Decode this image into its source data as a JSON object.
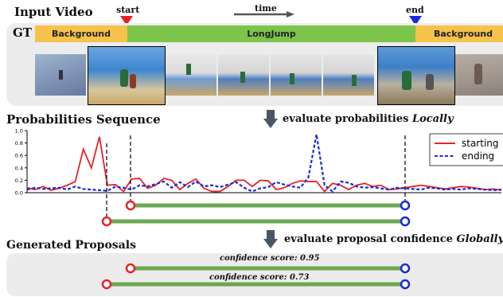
{
  "input_video": {
    "title": "Input Video",
    "start_label": "start",
    "end_label": "end",
    "time_label": "time",
    "gt_label": "GT",
    "segments": [
      "Background",
      "LongJump",
      "Background"
    ],
    "colors": {
      "background_seg": "#f5c24a",
      "action_seg": "#7cc44a",
      "start_marker": "#e8202a",
      "end_marker": "#1a2ad8"
    }
  },
  "probabilities": {
    "title": "Probabilities Sequence",
    "note_prefix": "evaluate probabilities ",
    "note_emphasis": "Locally"
  },
  "proposals": {
    "title": "Generated Proposals",
    "note_prefix": "evaluate proposal confidence ",
    "note_emphasis": "Globally",
    "items": [
      {
        "confidence_label": "confidence score: 0.95"
      },
      {
        "confidence_label": "confidence score: 0.73"
      }
    ]
  },
  "chart_data": {
    "type": "line",
    "x": [
      0,
      1,
      2,
      3,
      4,
      5,
      6,
      7,
      8,
      9,
      10,
      11,
      12,
      13,
      14,
      15,
      16,
      17,
      18,
      19,
      20,
      21,
      22,
      23,
      24,
      25,
      26,
      27,
      28,
      29,
      30,
      31,
      32,
      33,
      34,
      35,
      36,
      37,
      38,
      39,
      40,
      41,
      42,
      43,
      44,
      45,
      46,
      47,
      48,
      49,
      50,
      51,
      52,
      53,
      54,
      55,
      56,
      57,
      58,
      59
    ],
    "yticks": [
      "0.0",
      "0.2",
      "0.4",
      "0.6",
      "0.8",
      "1.0"
    ],
    "ylim": [
      0,
      1.0
    ],
    "series": [
      {
        "name": "starting",
        "color": "#e8202a",
        "style": "solid",
        "values": [
          0.08,
          0.05,
          0.1,
          0.04,
          0.07,
          0.12,
          0.18,
          0.7,
          0.4,
          0.9,
          0.12,
          0.13,
          0.02,
          0.22,
          0.23,
          0.07,
          0.12,
          0.23,
          0.2,
          0.05,
          0.15,
          0.22,
          0.07,
          0.02,
          0.02,
          0.1,
          0.2,
          0.2,
          0.1,
          0.2,
          0.19,
          0.05,
          0.08,
          0.15,
          0.19,
          0.18,
          0.18,
          0.02,
          0.15,
          0.12,
          0.05,
          0.12,
          0.15,
          0.1,
          0.12,
          0.05,
          0.06,
          0.08,
          0.1,
          0.12,
          0.1,
          0.08,
          0.06,
          0.08,
          0.1,
          0.09,
          0.07,
          0.05,
          0.06,
          0.04
        ]
      },
      {
        "name": "ending",
        "color": "#1a2ad8",
        "style": "dashed",
        "values": [
          0.05,
          0.08,
          0.06,
          0.07,
          0.08,
          0.05,
          0.1,
          0.06,
          0.05,
          0.04,
          0.03,
          0.1,
          0.08,
          0.05,
          0.12,
          0.1,
          0.14,
          0.18,
          0.08,
          0.17,
          0.09,
          0.18,
          0.1,
          0.12,
          0.09,
          0.13,
          0.17,
          0.08,
          0.02,
          0.07,
          0.09,
          0.17,
          0.13,
          0.1,
          0.08,
          0.25,
          0.94,
          0.12,
          0.02,
          0.18,
          0.16,
          0.1,
          0.08,
          0.09,
          0.07,
          0.05,
          0.08,
          0.07,
          0.06,
          0.05,
          0.08,
          0.07,
          0.05,
          0.06,
          0.05,
          0.07,
          0.06,
          0.05,
          0.04,
          0.05
        ]
      }
    ]
  }
}
